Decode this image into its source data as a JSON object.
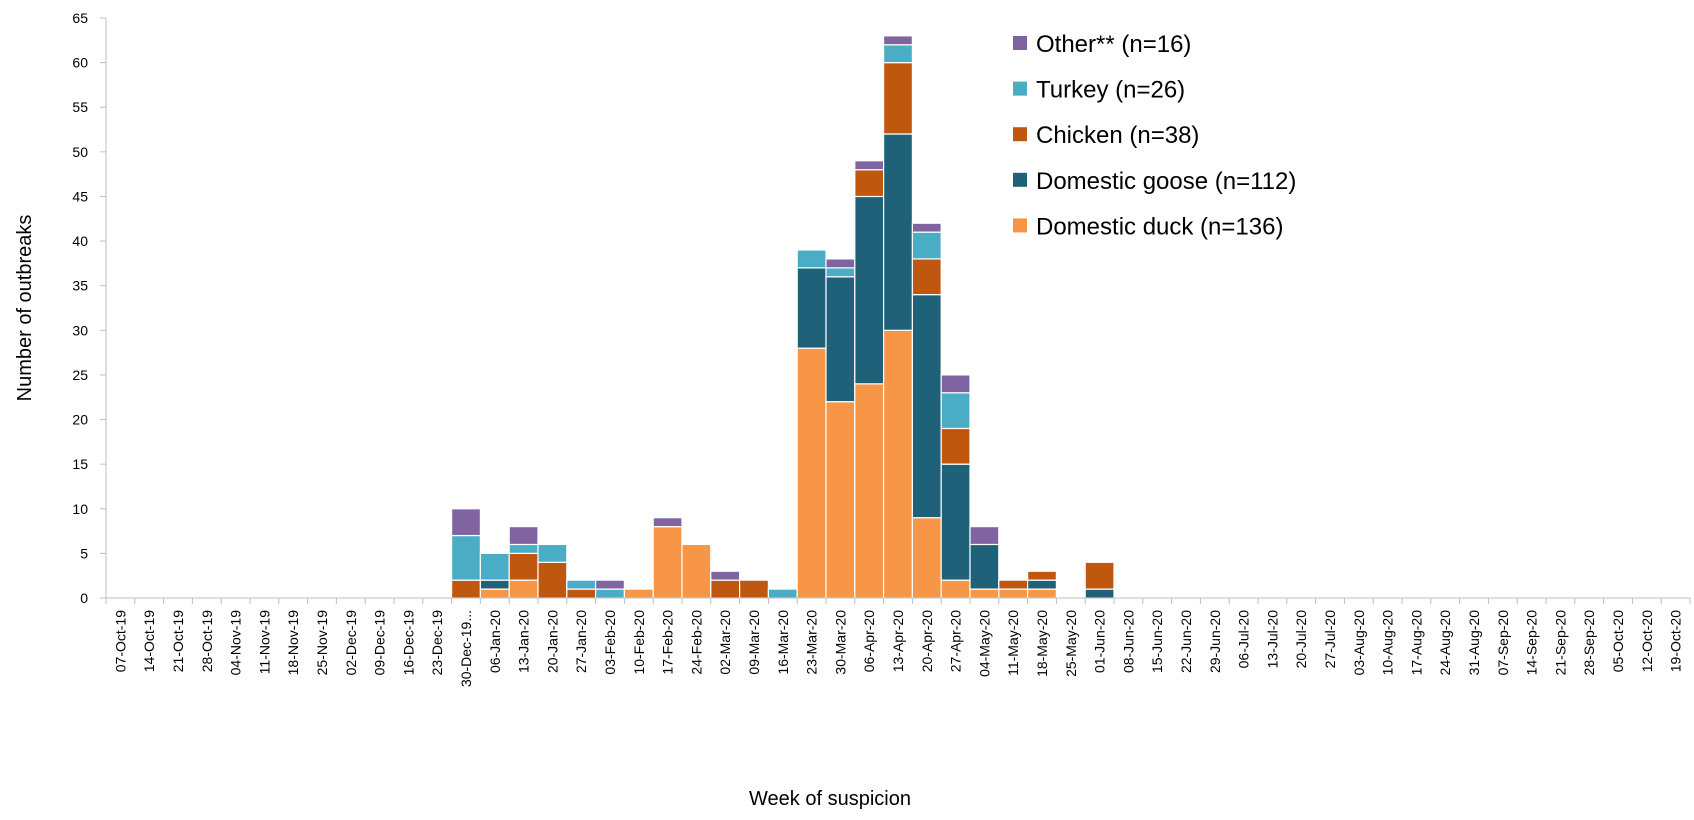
{
  "chart_data": {
    "type": "bar",
    "stacked": true,
    "xlabel": "Week of suspicion",
    "ylabel": "Number of outbreaks",
    "ylim": [
      0,
      65
    ],
    "yticks": [
      0,
      5,
      10,
      15,
      20,
      25,
      30,
      35,
      40,
      45,
      50,
      55,
      60,
      65
    ],
    "grid": false,
    "legend_position": "top-right",
    "categories": [
      "07-Oct-19",
      "14-Oct-19",
      "21-Oct-19",
      "28-Oct-19",
      "04-Nov-19",
      "11-Nov-19",
      "18-Nov-19",
      "25-Nov-19",
      "02-Dec-19",
      "09-Dec-19",
      "16-Dec-19",
      "23-Dec-19",
      "30-Dec-19...",
      "06-Jan-20",
      "13-Jan-20",
      "20-Jan-20",
      "27-Jan-20",
      "03-Feb-20",
      "10-Feb-20",
      "17-Feb-20",
      "24-Feb-20",
      "02-Mar-20",
      "09-Mar-20",
      "16-Mar-20",
      "23-Mar-20",
      "30-Mar-20",
      "06-Apr-20",
      "13-Apr-20",
      "20-Apr-20",
      "27-Apr-20",
      "04-May-20",
      "11-May-20",
      "18-May-20",
      "25-May-20",
      "01-Jun-20",
      "08-Jun-20",
      "15-Jun-20",
      "22-Jun-20",
      "29-Jun-20",
      "06-Jul-20",
      "13-Jul-20",
      "20-Jul-20",
      "27-Jul-20",
      "03-Aug-20",
      "10-Aug-20",
      "17-Aug-20",
      "24-Aug-20",
      "31-Aug-20",
      "07-Sep-20",
      "14-Sep-20",
      "21-Sep-20",
      "28-Sep-20",
      "05-Oct-20",
      "12-Oct-20",
      "19-Oct-20"
    ],
    "series": [
      {
        "name": "Domestic duck (n=136)",
        "color": "#F79646",
        "values": [
          0,
          0,
          0,
          0,
          0,
          0,
          0,
          0,
          0,
          0,
          0,
          0,
          0,
          1,
          2,
          0,
          0,
          0,
          1,
          8,
          6,
          0,
          0,
          0,
          28,
          22,
          24,
          30,
          9,
          2,
          1,
          1,
          1,
          0,
          0,
          0,
          0,
          0,
          0,
          0,
          0,
          0,
          0,
          0,
          0,
          0,
          0,
          0,
          0,
          0,
          0,
          0,
          0,
          0,
          0
        ]
      },
      {
        "name": "Domestic goose (n=112)",
        "color": "#1F6179",
        "values": [
          0,
          0,
          0,
          0,
          0,
          0,
          0,
          0,
          0,
          0,
          0,
          0,
          0,
          1,
          0,
          0,
          0,
          0,
          0,
          0,
          0,
          0,
          0,
          0,
          9,
          14,
          21,
          22,
          25,
          13,
          5,
          0,
          1,
          0,
          1,
          0,
          0,
          0,
          0,
          0,
          0,
          0,
          0,
          0,
          0,
          0,
          0,
          0,
          0,
          0,
          0,
          0,
          0,
          0,
          0
        ]
      },
      {
        "name": "Chicken (n=38)",
        "color": "#C0570F",
        "values": [
          0,
          0,
          0,
          0,
          0,
          0,
          0,
          0,
          0,
          0,
          0,
          0,
          2,
          0,
          3,
          4,
          1,
          0,
          0,
          0,
          0,
          2,
          2,
          0,
          0,
          0,
          3,
          8,
          4,
          4,
          0,
          1,
          1,
          0,
          3,
          0,
          0,
          0,
          0,
          0,
          0,
          0,
          0,
          0,
          0,
          0,
          0,
          0,
          0,
          0,
          0,
          0,
          0,
          0,
          0
        ]
      },
      {
        "name": "Turkey (n=26)",
        "color": "#4BACC6",
        "values": [
          0,
          0,
          0,
          0,
          0,
          0,
          0,
          0,
          0,
          0,
          0,
          0,
          5,
          3,
          1,
          2,
          1,
          1,
          0,
          0,
          0,
          0,
          0,
          1,
          2,
          1,
          0,
          2,
          3,
          4,
          0,
          0,
          0,
          0,
          0,
          0,
          0,
          0,
          0,
          0,
          0,
          0,
          0,
          0,
          0,
          0,
          0,
          0,
          0,
          0,
          0,
          0,
          0,
          0,
          0
        ]
      },
      {
        "name": "Other** (n=16)",
        "color": "#8064A2",
        "values": [
          0,
          0,
          0,
          0,
          0,
          0,
          0,
          0,
          0,
          0,
          0,
          0,
          3,
          0,
          2,
          0,
          0,
          1,
          0,
          1,
          0,
          1,
          0,
          0,
          0,
          1,
          1,
          1,
          1,
          2,
          2,
          0,
          0,
          0,
          0,
          0,
          0,
          0,
          0,
          0,
          0,
          0,
          0,
          0,
          0,
          0,
          0,
          0,
          0,
          0,
          0,
          0,
          0,
          0,
          0
        ]
      }
    ]
  }
}
